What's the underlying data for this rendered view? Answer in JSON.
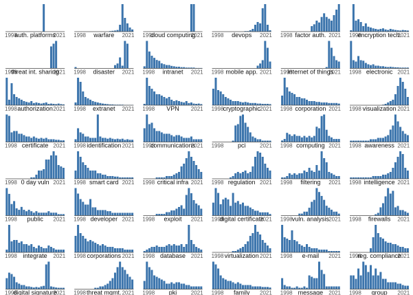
{
  "chart_data": {
    "type": "bar",
    "x_range": [
      1998,
      2021
    ],
    "x_tick_labels": [
      "1998",
      "2021"
    ],
    "bar_color": "#3b74ac",
    "panels": [
      {
        "label": "auth. platforms",
        "values": [
          0,
          0,
          0,
          0,
          0,
          0,
          0,
          0,
          0,
          0,
          0,
          0,
          0,
          0,
          0,
          100,
          0,
          0,
          0,
          0,
          0,
          0,
          0,
          0
        ]
      },
      {
        "label": "warfare",
        "values": [
          0,
          0,
          0,
          0,
          0,
          0,
          0,
          0,
          0,
          0,
          0,
          0,
          0,
          0,
          2,
          3,
          4,
          6,
          25,
          100,
          50,
          30,
          15,
          8
        ]
      },
      {
        "label": "cloud computing",
        "values": [
          0,
          0,
          0,
          0,
          0,
          0,
          0,
          0,
          0,
          0,
          0,
          0,
          0,
          0,
          0,
          0,
          0,
          0,
          0,
          5,
          5,
          0,
          0,
          0
        ]
      },
      {
        "label": "devops",
        "values": [
          0,
          0,
          0,
          0,
          0,
          0,
          0,
          0,
          0,
          0,
          0,
          0,
          0,
          2,
          2,
          5,
          10,
          25,
          35,
          30,
          85,
          100,
          25,
          5
        ]
      },
      {
        "label": "factor auth.",
        "values": [
          0,
          0,
          0,
          0,
          0,
          0,
          0,
          0,
          0,
          0,
          0,
          0,
          3,
          4,
          6,
          5,
          8,
          10,
          8,
          7,
          6,
          9,
          12,
          15
        ]
      },
      {
        "label": "encryption tech.",
        "values": [
          5,
          100,
          40,
          45,
          35,
          20,
          30,
          18,
          15,
          12,
          10,
          8,
          10,
          12,
          8,
          6,
          10,
          8,
          6,
          5,
          4,
          6,
          5,
          4
        ]
      },
      {
        "label": "threat int. sharing",
        "values": [
          0,
          0,
          0,
          0,
          0,
          0,
          0,
          0,
          0,
          0,
          0,
          0,
          0,
          0,
          0,
          0,
          0,
          0,
          80,
          90,
          100,
          0,
          0,
          0
        ]
      },
      {
        "label": "disaster",
        "values": [
          5,
          0,
          0,
          0,
          0,
          0,
          0,
          0,
          0,
          0,
          0,
          0,
          0,
          0,
          0,
          0,
          12,
          18,
          40,
          10,
          100,
          90,
          0,
          0
        ]
      },
      {
        "label": "intranet",
        "values": [
          5,
          65,
          40,
          30,
          25,
          20,
          18,
          12,
          10,
          8,
          8,
          6,
          5,
          4,
          4,
          3,
          3,
          2,
          2,
          2,
          2,
          1,
          1,
          1
        ]
      },
      {
        "label": "mobile app.",
        "values": [
          0,
          0,
          0,
          0,
          0,
          0,
          0,
          0,
          0,
          0,
          0,
          0,
          0,
          0,
          0,
          0,
          0,
          0,
          10,
          18,
          30,
          100,
          75,
          25
        ]
      },
      {
        "label": "internet of things",
        "values": [
          0,
          0,
          0,
          0,
          0,
          0,
          0,
          0,
          0,
          0,
          0,
          0,
          0,
          0,
          0,
          0,
          0,
          0,
          5,
          100,
          75,
          45,
          30,
          25
        ]
      },
      {
        "label": "electronic",
        "values": [
          100,
          30,
          25,
          45,
          30,
          28,
          20,
          15,
          12,
          15,
          10,
          10,
          8,
          8,
          6,
          5,
          6,
          5,
          4,
          4,
          3,
          3,
          3,
          3
        ]
      },
      {
        "label": "authorization",
        "values": [
          100,
          20,
          80,
          40,
          30,
          25,
          20,
          15,
          12,
          10,
          15,
          8,
          10,
          8,
          6,
          8,
          10,
          5,
          6,
          5,
          4,
          6,
          4,
          3
        ]
      },
      {
        "label": "extranet",
        "values": [
          10,
          100,
          85,
          50,
          30,
          25,
          20,
          15,
          12,
          10,
          8,
          6,
          5,
          4,
          3,
          3,
          2,
          2,
          2,
          2,
          1,
          1,
          1,
          1
        ]
      },
      {
        "label": "VPN",
        "values": [
          5,
          100,
          70,
          60,
          50,
          40,
          40,
          35,
          30,
          25,
          30,
          20,
          15,
          18,
          15,
          12,
          10,
          15,
          8,
          10,
          6,
          5,
          6,
          4
        ]
      },
      {
        "label": "cryptographic",
        "values": [
          60,
          100,
          55,
          50,
          40,
          30,
          25,
          20,
          15,
          15,
          15,
          12,
          10,
          12,
          10,
          8,
          8,
          8,
          6,
          6,
          5,
          5,
          5,
          4
        ]
      },
      {
        "label": "corporation",
        "values": [
          35,
          100,
          65,
          50,
          45,
          40,
          30,
          30,
          25,
          25,
          20,
          15,
          15,
          15,
          12,
          12,
          10,
          10,
          10,
          8,
          8,
          8,
          8,
          6
        ]
      },
      {
        "label": "visualization",
        "values": [
          0,
          0,
          0,
          0,
          0,
          0,
          0,
          0,
          0,
          0,
          0,
          0,
          0,
          2,
          5,
          10,
          15,
          20,
          40,
          70,
          100,
          85,
          60,
          30
        ]
      },
      {
        "label": "certificate",
        "values": [
          100,
          95,
          35,
          40,
          40,
          30,
          30,
          25,
          20,
          20,
          15,
          20,
          15,
          12,
          15,
          12,
          15,
          10,
          10,
          10,
          8,
          8,
          6,
          6
        ]
      },
      {
        "label": "identification",
        "values": [
          10,
          50,
          35,
          30,
          20,
          20,
          15,
          15,
          15,
          100,
          20,
          15,
          15,
          12,
          15,
          12,
          10,
          12,
          10,
          12,
          8,
          10,
          8,
          8
        ]
      },
      {
        "label": "communications",
        "values": [
          50,
          100,
          65,
          70,
          50,
          40,
          40,
          35,
          30,
          30,
          30,
          25,
          20,
          25,
          25,
          20,
          15,
          15,
          15,
          20,
          10,
          10,
          10,
          10
        ]
      },
      {
        "label": "pci",
        "values": [
          0,
          0,
          0,
          0,
          0,
          0,
          0,
          0,
          5,
          60,
          65,
          95,
          100,
          70,
          55,
          35,
          20,
          15,
          10,
          10,
          5,
          5,
          5,
          5
        ]
      },
      {
        "label": "computing",
        "values": [
          5,
          10,
          30,
          25,
          20,
          25,
          20,
          20,
          15,
          20,
          15,
          20,
          15,
          20,
          50,
          45,
          85,
          90,
          40,
          20,
          15,
          10,
          10,
          10
        ]
      },
      {
        "label": "awareness",
        "values": [
          5,
          5,
          5,
          5,
          5,
          5,
          5,
          5,
          10,
          10,
          10,
          15,
          15,
          15,
          20,
          25,
          45,
          60,
          100,
          75,
          55,
          40,
          30,
          25
        ]
      },
      {
        "label": "0 day vuln",
        "values": [
          0,
          0,
          0,
          0,
          0,
          0,
          0,
          0,
          0,
          0,
          5,
          5,
          15,
          30,
          30,
          35,
          70,
          70,
          85,
          100,
          85,
          50,
          45,
          40
        ]
      },
      {
        "label": "smart card",
        "values": [
          30,
          100,
          80,
          60,
          50,
          40,
          30,
          30,
          30,
          20,
          20,
          15,
          15,
          10,
          10,
          10,
          8,
          8,
          5,
          5,
          5,
          5,
          5,
          5
        ]
      },
      {
        "label": "critical infra",
        "values": [
          0,
          0,
          0,
          0,
          0,
          5,
          5,
          5,
          5,
          10,
          10,
          10,
          15,
          20,
          25,
          45,
          55,
          75,
          100,
          80,
          65,
          50,
          35,
          25
        ]
      },
      {
        "label": "regulation",
        "values": [
          0,
          0,
          0,
          0,
          0,
          0,
          0,
          5,
          10,
          20,
          25,
          20,
          25,
          30,
          20,
          25,
          45,
          80,
          100,
          95,
          80,
          55,
          40,
          30
        ]
      },
      {
        "label": "filtering",
        "values": [
          5,
          5,
          10,
          20,
          15,
          20,
          15,
          20,
          20,
          30,
          25,
          40,
          30,
          25,
          50,
          30,
          100,
          75,
          60,
          25,
          20,
          15,
          10,
          10
        ]
      },
      {
        "label": "intelligence",
        "values": [
          5,
          5,
          5,
          5,
          5,
          5,
          5,
          5,
          5,
          10,
          10,
          10,
          10,
          15,
          15,
          20,
          25,
          40,
          60,
          80,
          100,
          90,
          40,
          30
        ]
      },
      {
        "label": "public",
        "values": [
          95,
          75,
          40,
          50,
          25,
          20,
          30,
          20,
          15,
          20,
          15,
          10,
          15,
          10,
          10,
          10,
          10,
          15,
          10,
          10,
          10,
          5,
          5,
          5
        ]
      },
      {
        "label": "developer",
        "values": [
          50,
          40,
          30,
          25,
          20,
          20,
          30,
          15,
          15,
          10,
          10,
          10,
          10,
          8,
          8,
          5,
          5,
          5,
          5,
          5,
          5,
          5,
          5,
          5
        ]
      },
      {
        "label": "exploit",
        "values": [
          0,
          0,
          0,
          0,
          0,
          5,
          5,
          5,
          5,
          10,
          10,
          15,
          15,
          20,
          25,
          30,
          20,
          60,
          80,
          65,
          45,
          35,
          30,
          20
        ]
      },
      {
        "label": "digital certificate",
        "values": [
          40,
          85,
          70,
          35,
          50,
          55,
          50,
          30,
          70,
          40,
          45,
          35,
          40,
          30,
          30,
          25,
          20,
          15,
          15,
          10,
          10,
          10,
          10,
          5
        ]
      },
      {
        "label": "vuln. analysis",
        "values": [
          0,
          0,
          0,
          0,
          0,
          0,
          0,
          5,
          5,
          10,
          10,
          20,
          35,
          40,
          70,
          60,
          50,
          40,
          25,
          20,
          15,
          10,
          10,
          5
        ]
      },
      {
        "label": "firewalls",
        "values": [
          0,
          0,
          0,
          0,
          0,
          0,
          0,
          0,
          0,
          0,
          5,
          10,
          30,
          45,
          70,
          100,
          80,
          90,
          30,
          35,
          20,
          20,
          15,
          10
        ]
      },
      {
        "label": "integrate",
        "values": [
          10,
          100,
          40,
          45,
          45,
          35,
          40,
          30,
          30,
          25,
          30,
          20,
          15,
          25,
          20,
          15,
          15,
          25,
          20,
          15,
          10,
          10,
          10,
          10
        ]
      },
      {
        "label": "corporations",
        "values": [
          60,
          100,
          70,
          60,
          50,
          40,
          45,
          40,
          35,
          30,
          25,
          30,
          25,
          20,
          20,
          20,
          15,
          15,
          15,
          15,
          10,
          10,
          10,
          10
        ]
      },
      {
        "label": "database",
        "values": [
          5,
          10,
          15,
          20,
          20,
          25,
          20,
          20,
          20,
          25,
          30,
          25,
          30,
          25,
          25,
          30,
          20,
          30,
          100,
          45,
          30,
          20,
          15,
          10
        ]
      },
      {
        "label": "virtualization",
        "values": [
          0,
          0,
          0,
          0,
          0,
          0,
          0,
          0,
          5,
          5,
          10,
          15,
          20,
          30,
          40,
          60,
          70,
          100,
          75,
          65,
          45,
          35,
          25,
          15
        ]
      },
      {
        "label": "e-mail",
        "values": [
          100,
          55,
          50,
          45,
          80,
          45,
          40,
          30,
          25,
          20,
          30,
          20,
          15,
          15,
          15,
          10,
          10,
          10,
          10,
          5,
          5,
          5,
          5,
          5
        ]
      },
      {
        "label": "reg. compliance",
        "values": [
          0,
          0,
          0,
          0,
          0,
          0,
          0,
          0,
          15,
          55,
          100,
          70,
          55,
          50,
          40,
          35,
          35,
          30,
          30,
          25,
          20,
          20,
          15,
          15
        ]
      },
      {
        "label": "digital signature",
        "values": [
          40,
          60,
          55,
          45,
          25,
          20,
          15,
          15,
          10,
          10,
          8,
          6,
          8,
          6,
          10,
          12,
          90,
          100,
          10,
          8,
          6,
          5,
          5,
          5
        ]
      },
      {
        "label": "threat mgmt.",
        "values": [
          0,
          0,
          0,
          0,
          0,
          0,
          0,
          0,
          5,
          5,
          10,
          10,
          15,
          20,
          30,
          40,
          60,
          80,
          100,
          80,
          70,
          55,
          45,
          35
        ]
      },
      {
        "label": "pki",
        "values": [
          30,
          100,
          80,
          70,
          50,
          45,
          40,
          35,
          30,
          20,
          20,
          25,
          20,
          25,
          25,
          20,
          20,
          15,
          15,
          10,
          10,
          10,
          10,
          10
        ]
      },
      {
        "label": "family",
        "values": [
          100,
          90,
          75,
          50,
          40,
          35,
          30,
          30,
          25,
          20,
          25,
          20,
          15,
          15,
          15,
          15,
          10,
          10,
          10,
          10,
          8,
          8,
          8,
          6
        ]
      },
      {
        "label": "message",
        "values": [
          40,
          15,
          10,
          10,
          5,
          5,
          10,
          5,
          5,
          10,
          5,
          50,
          45,
          40,
          40,
          100,
          70,
          55,
          10,
          10,
          10,
          10,
          10,
          10
        ]
      },
      {
        "label": "group",
        "values": [
          20,
          20,
          15,
          30,
          20,
          40,
          35,
          25,
          35,
          20,
          30,
          20,
          25,
          15,
          15,
          10,
          10,
          10,
          10,
          8,
          8,
          6,
          5,
          5
        ]
      }
    ]
  }
}
